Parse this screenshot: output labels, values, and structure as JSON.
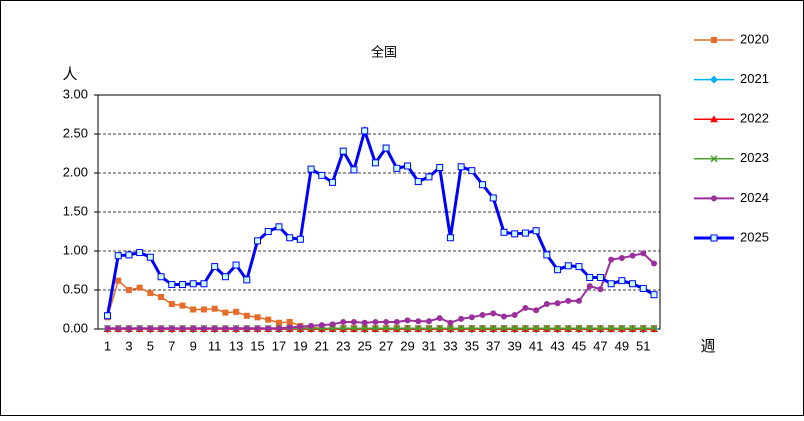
{
  "chart_data": {
    "type": "line",
    "title": "全国",
    "y_label": "人",
    "x_label": "週",
    "x": [
      1,
      2,
      3,
      4,
      5,
      6,
      7,
      8,
      9,
      10,
      11,
      12,
      13,
      14,
      15,
      16,
      17,
      18,
      19,
      20,
      21,
      22,
      23,
      24,
      25,
      26,
      27,
      28,
      29,
      30,
      31,
      32,
      33,
      34,
      35,
      36,
      37,
      38,
      39,
      40,
      41,
      42,
      43,
      44,
      45,
      46,
      47,
      48,
      49,
      50,
      51,
      52
    ],
    "xlim": [
      1,
      52
    ],
    "xticks": [
      1,
      3,
      5,
      7,
      9,
      11,
      13,
      15,
      17,
      19,
      21,
      23,
      25,
      27,
      29,
      31,
      33,
      35,
      37,
      39,
      41,
      43,
      45,
      47,
      49,
      51
    ],
    "ylim": [
      0,
      3
    ],
    "yticks": [
      {
        "value": 0,
        "label": "0.00"
      },
      {
        "value": 0.5,
        "label": "0.50"
      },
      {
        "value": 1,
        "label": "1.00"
      },
      {
        "value": 1.5,
        "label": "1.50"
      },
      {
        "value": 2,
        "label": "2.00"
      },
      {
        "value": 2.5,
        "label": "2.50"
      },
      {
        "value": 3,
        "label": "3.00"
      }
    ],
    "grid": true,
    "legend": "right",
    "series": [
      {
        "name": "2020",
        "color": "#e46c28",
        "marker": "square",
        "width": 1.5,
        "values": [
          0.15,
          0.62,
          0.5,
          0.53,
          0.46,
          0.41,
          0.32,
          0.3,
          0.25,
          0.25,
          0.26,
          0.21,
          0.22,
          0.17,
          0.15,
          0.12,
          0.08,
          0.09,
          0.04,
          0.02,
          0.01,
          0.01,
          0.01,
          0.01,
          0.01,
          0.01,
          0.01,
          0.01,
          0.01,
          0.01,
          0.01,
          0.01,
          0.01,
          0.01,
          0.01,
          0.01,
          0.01,
          0.01,
          0.01,
          0.01,
          0.01,
          0.01,
          0.01,
          0.01,
          0.01,
          0.01,
          0.01,
          0.01,
          0.01,
          0.01,
          0.01,
          0.01
        ]
      },
      {
        "name": "2021",
        "color": "#00b0f0",
        "marker": "diamond",
        "width": 1.5,
        "values": [
          0,
          0,
          0,
          0,
          0,
          0,
          0,
          0,
          0,
          0,
          0,
          0,
          0,
          0,
          0,
          0,
          0,
          0,
          0,
          0,
          0,
          0,
          0,
          0,
          0,
          0,
          0,
          0,
          0,
          0,
          0,
          0,
          0,
          0,
          0,
          0,
          0,
          0,
          0,
          0,
          0,
          0,
          0,
          0,
          0,
          0,
          0,
          0,
          0,
          0,
          0,
          0
        ]
      },
      {
        "name": "2022",
        "color": "#ff0000",
        "marker": "triangle",
        "width": 1.5,
        "values": [
          0,
          0,
          0,
          0,
          0,
          0,
          0,
          0,
          0,
          0,
          0,
          0,
          0,
          0,
          0,
          0,
          0,
          0,
          0,
          0,
          0,
          0,
          0,
          0,
          0,
          0,
          0,
          0,
          0,
          0,
          0,
          0,
          0,
          0,
          0,
          0,
          0,
          0,
          0,
          0,
          0,
          0,
          0,
          0,
          0,
          0,
          0,
          0,
          0,
          0,
          0,
          0
        ]
      },
      {
        "name": "2023",
        "color": "#4aa02c",
        "marker": "cross",
        "width": 1.5,
        "values": [
          0.01,
          0.01,
          0.01,
          0.01,
          0.01,
          0.01,
          0.01,
          0.01,
          0.01,
          0.01,
          0.01,
          0.01,
          0.01,
          0.01,
          0.01,
          0.01,
          0.01,
          0.01,
          0.01,
          0.01,
          0.01,
          0.01,
          0.01,
          0.01,
          0.01,
          0.01,
          0.01,
          0.01,
          0.01,
          0.01,
          0.01,
          0.01,
          0.01,
          0.01,
          0.01,
          0.01,
          0.01,
          0.01,
          0.01,
          0.01,
          0.01,
          0.01,
          0.01,
          0.01,
          0.01,
          0.01,
          0.01,
          0.01,
          0.01,
          0.01,
          0.01,
          0.01
        ]
      },
      {
        "name": "2024",
        "color": "#9b2f9b",
        "marker": "circle",
        "width": 2,
        "values": [
          0.01,
          0.01,
          0.01,
          0.01,
          0.01,
          0.01,
          0.01,
          0.01,
          0.01,
          0.01,
          0.01,
          0.01,
          0.01,
          0.01,
          0.01,
          0.01,
          0.01,
          0.02,
          0.03,
          0.04,
          0.05,
          0.06,
          0.09,
          0.09,
          0.08,
          0.09,
          0.09,
          0.09,
          0.11,
          0.1,
          0.1,
          0.14,
          0.08,
          0.13,
          0.15,
          0.18,
          0.2,
          0.16,
          0.18,
          0.27,
          0.24,
          0.32,
          0.33,
          0.36,
          0.36,
          0.55,
          0.51,
          0.89,
          0.91,
          0.94,
          0.97,
          0.84
        ]
      },
      {
        "name": "2025",
        "color": "#0000ff",
        "marker": "square-open",
        "width": 3,
        "values": [
          0.17,
          0.94,
          0.95,
          0.98,
          0.92,
          0.67,
          0.57,
          0.57,
          0.58,
          0.58,
          0.8,
          0.67,
          0.82,
          0.63,
          1.13,
          1.25,
          1.31,
          1.17,
          1.15,
          2.05,
          1.97,
          1.88,
          2.28,
          2.04,
          2.54,
          2.13,
          2.32,
          2.06,
          2.09,
          1.89,
          1.95,
          2.07,
          1.17,
          2.08,
          2.03,
          1.85,
          1.68,
          1.24,
          1.22,
          1.23,
          1.26,
          0.95,
          0.76,
          0.81,
          0.8,
          0.66,
          0.66,
          0.58,
          0.62,
          0.58,
          0.52,
          0.44
        ]
      }
    ]
  }
}
